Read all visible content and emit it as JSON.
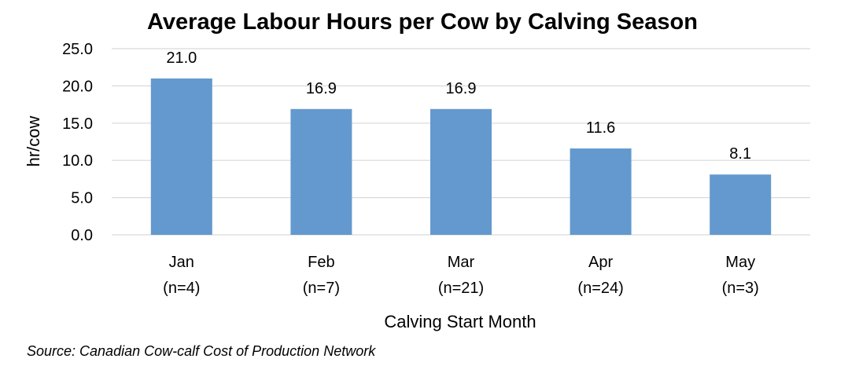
{
  "chart_data": {
    "type": "bar",
    "title": "Average Labour Hours per Cow by Calving Season",
    "xlabel": "Calving Start Month",
    "ylabel": "hr/cow",
    "categories": [
      "Jan",
      "Feb",
      "Mar",
      "Apr",
      "May"
    ],
    "category_sublabels": [
      "(n=4)",
      "(n=7)",
      "(n=21)",
      "(n=24)",
      "(n=3)"
    ],
    "values": [
      21.0,
      16.9,
      16.9,
      11.6,
      8.1
    ],
    "data_labels": [
      "21.0",
      "16.9",
      "16.9",
      "11.6",
      "8.1"
    ],
    "ylim": [
      0,
      25
    ],
    "yticks": [
      "0.0",
      "5.0",
      "10.0",
      "15.0",
      "20.0",
      "25.0"
    ],
    "grid": true,
    "legend": "none",
    "bar_color": "#6399CE",
    "grid_color": "#D9D9D9"
  },
  "source": "Source: Canadian Cow-calf Cost of Production Network"
}
